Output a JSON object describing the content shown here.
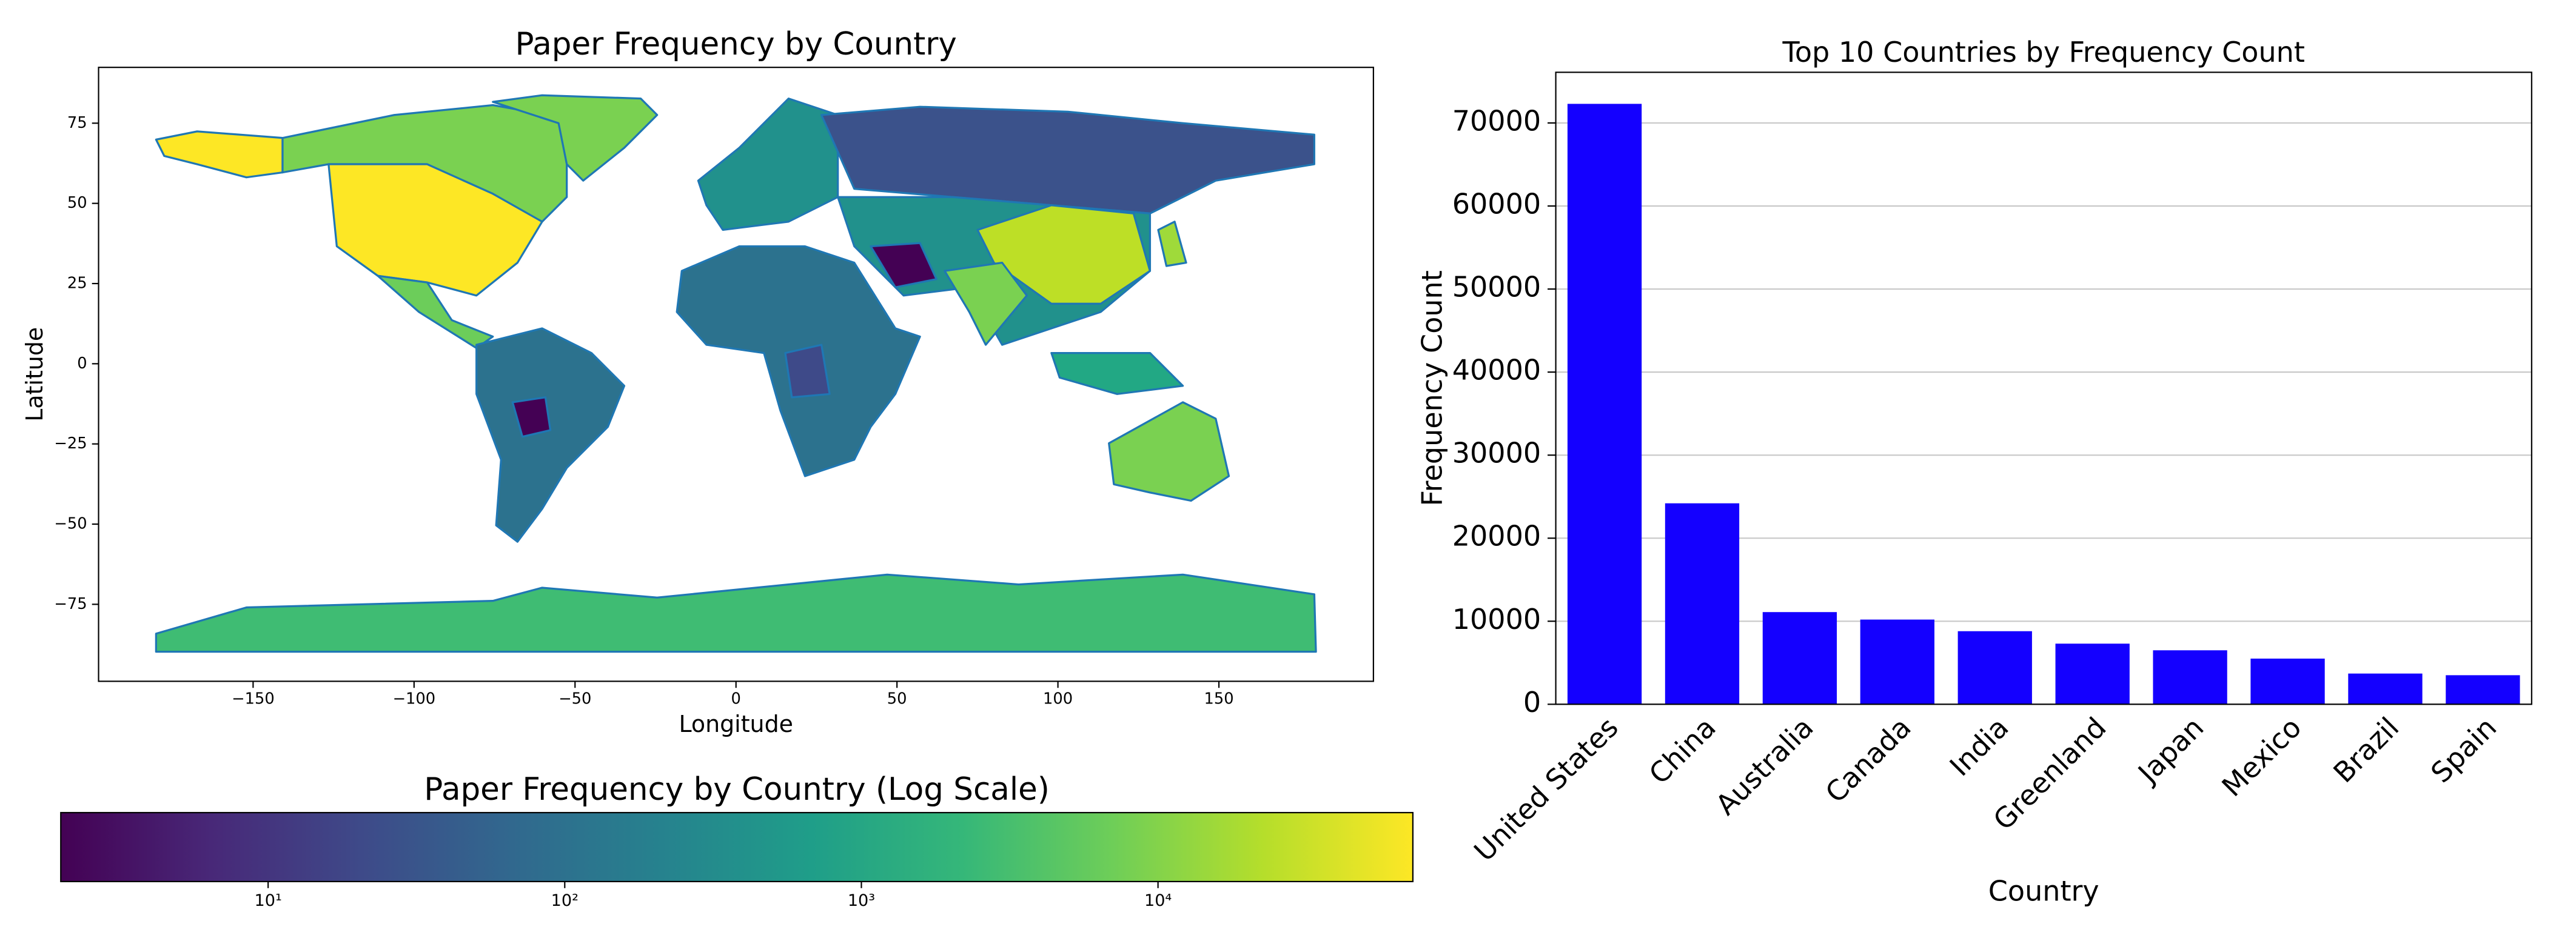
{
  "chart_data": [
    {
      "type": "map",
      "title": "Paper Frequency by Country",
      "x_label": "Longitude",
      "y_label": "Latitude",
      "xlim": [
        -198,
        198
      ],
      "xticks": [
        {
          "value": -150,
          "label": "−150"
        },
        {
          "value": -100,
          "label": "−100"
        },
        {
          "value": -50,
          "label": "−50"
        },
        0,
        50,
        100,
        150
      ],
      "ylim": [
        -99,
        92.4
      ],
      "yticks": [
        {
          "value": -75,
          "label": "−75"
        },
        {
          "value": -50,
          "label": "−50"
        },
        {
          "value": -25,
          "label": "−25"
        },
        0,
        25,
        50,
        75
      ]
    },
    {
      "type": "colorbar",
      "title": "Paper Frequency by Country (Log Scale)",
      "colormap": "viridis",
      "log_scale": true,
      "xlim": [
        2,
        72300
      ],
      "xticks": [
        {
          "value": 10,
          "label": "10¹"
        },
        {
          "value": 100,
          "label": "10²"
        },
        {
          "value": 1000,
          "label": "10³"
        },
        {
          "value": 10000,
          "label": "10⁴"
        }
      ]
    },
    {
      "type": "bar",
      "title": "Top 10 Countries by Frequency Count",
      "x_label": "Country",
      "y_label": "Frequency Count",
      "categories": [
        "United States",
        "China",
        "Australia",
        "Canada",
        "India",
        "Greenland",
        "Japan",
        "Mexico",
        "Brazil",
        "Spain"
      ],
      "values": [
        72300,
        24200,
        11100,
        10200,
        8800,
        7300,
        6500,
        5500,
        3700,
        3500
      ],
      "color": "#1400ff",
      "ylim": [
        0,
        76100
      ],
      "yticks": [
        0,
        10000,
        20000,
        30000,
        40000,
        50000,
        60000,
        70000
      ],
      "grid": true
    }
  ]
}
